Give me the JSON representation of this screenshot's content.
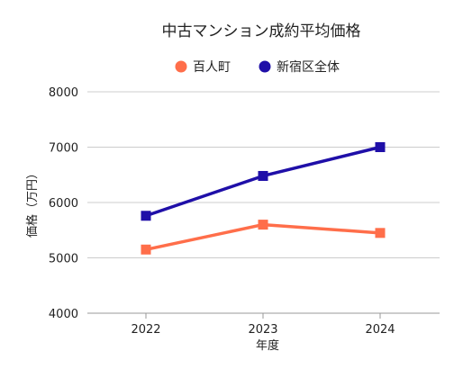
{
  "chart_data": {
    "type": "line",
    "title": "中古マンション成約平均価格",
    "xlabel": "年度",
    "ylabel": "価格（万円）",
    "categories": [
      "2022",
      "2023",
      "2024"
    ],
    "ylim": [
      4000,
      8000
    ],
    "yticks": [
      4000,
      5000,
      6000,
      7000,
      8000
    ],
    "legend_position": "top-center",
    "grid": true,
    "series": [
      {
        "name": "百人町",
        "values": [
          5150,
          5600,
          5450
        ],
        "color": "#ff6e4a",
        "marker": "square"
      },
      {
        "name": "新宿区全体",
        "values": [
          5760,
          6480,
          7000
        ],
        "color": "#1f0fa8",
        "marker": "square"
      }
    ]
  }
}
